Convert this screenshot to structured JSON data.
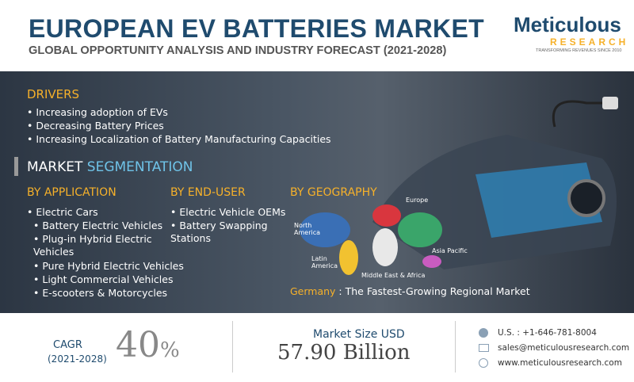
{
  "header": {
    "title": "EUROPEAN EV BATTERIES MARKET",
    "subtitle": "GLOBAL OPPORTUNITY ANALYSIS AND INDUSTRY FORECAST (2021-2028)"
  },
  "logo": {
    "name": "Meticulous",
    "sub": "RESEARCH",
    "tagline": "TRANSFORMING REVENUES SINCE 2010"
  },
  "drivers": {
    "title": "DRIVERS",
    "items": [
      "Increasing adoption of EVs",
      "Decreasing Battery Prices",
      "Increasing Localization of Battery Manufacturing Capacities"
    ]
  },
  "segmentation": {
    "title_a": "MARKET",
    "title_b": "SEGMENTATION"
  },
  "application": {
    "title": "BY APPLICATION",
    "items": [
      "Electric Cars",
      "Battery Electric Vehicles",
      "Plug-in Hybrid Electric Vehicles",
      "Pure Hybrid Electric Vehicles",
      "Light Commercial Vehicles",
      "E-scooters & Motorcycles"
    ]
  },
  "end_user": {
    "title": "BY END-USER",
    "items": [
      "Electric Vehicle OEMs",
      "Battery Swapping Stations"
    ]
  },
  "geography": {
    "title": "BY GEOGRAPHY",
    "regions": [
      "Europe",
      "North America",
      "Latin America",
      "Middle East & Africa",
      "Asia Pacific"
    ]
  },
  "highlight": {
    "country": "Germany",
    "text": " : The Fastest-Growing Regional Market"
  },
  "footer": {
    "cagr_label": "CAGR",
    "cagr_period": "(2021-2028)",
    "cagr_value": "40",
    "cagr_unit": "%",
    "size_label": "Market Size USD",
    "size_value": "57.90 Billion",
    "contacts": [
      "U.S. : +1-646-781-8004",
      "sales@meticulousresearch.com",
      "www.meticulousresearch.com"
    ]
  }
}
